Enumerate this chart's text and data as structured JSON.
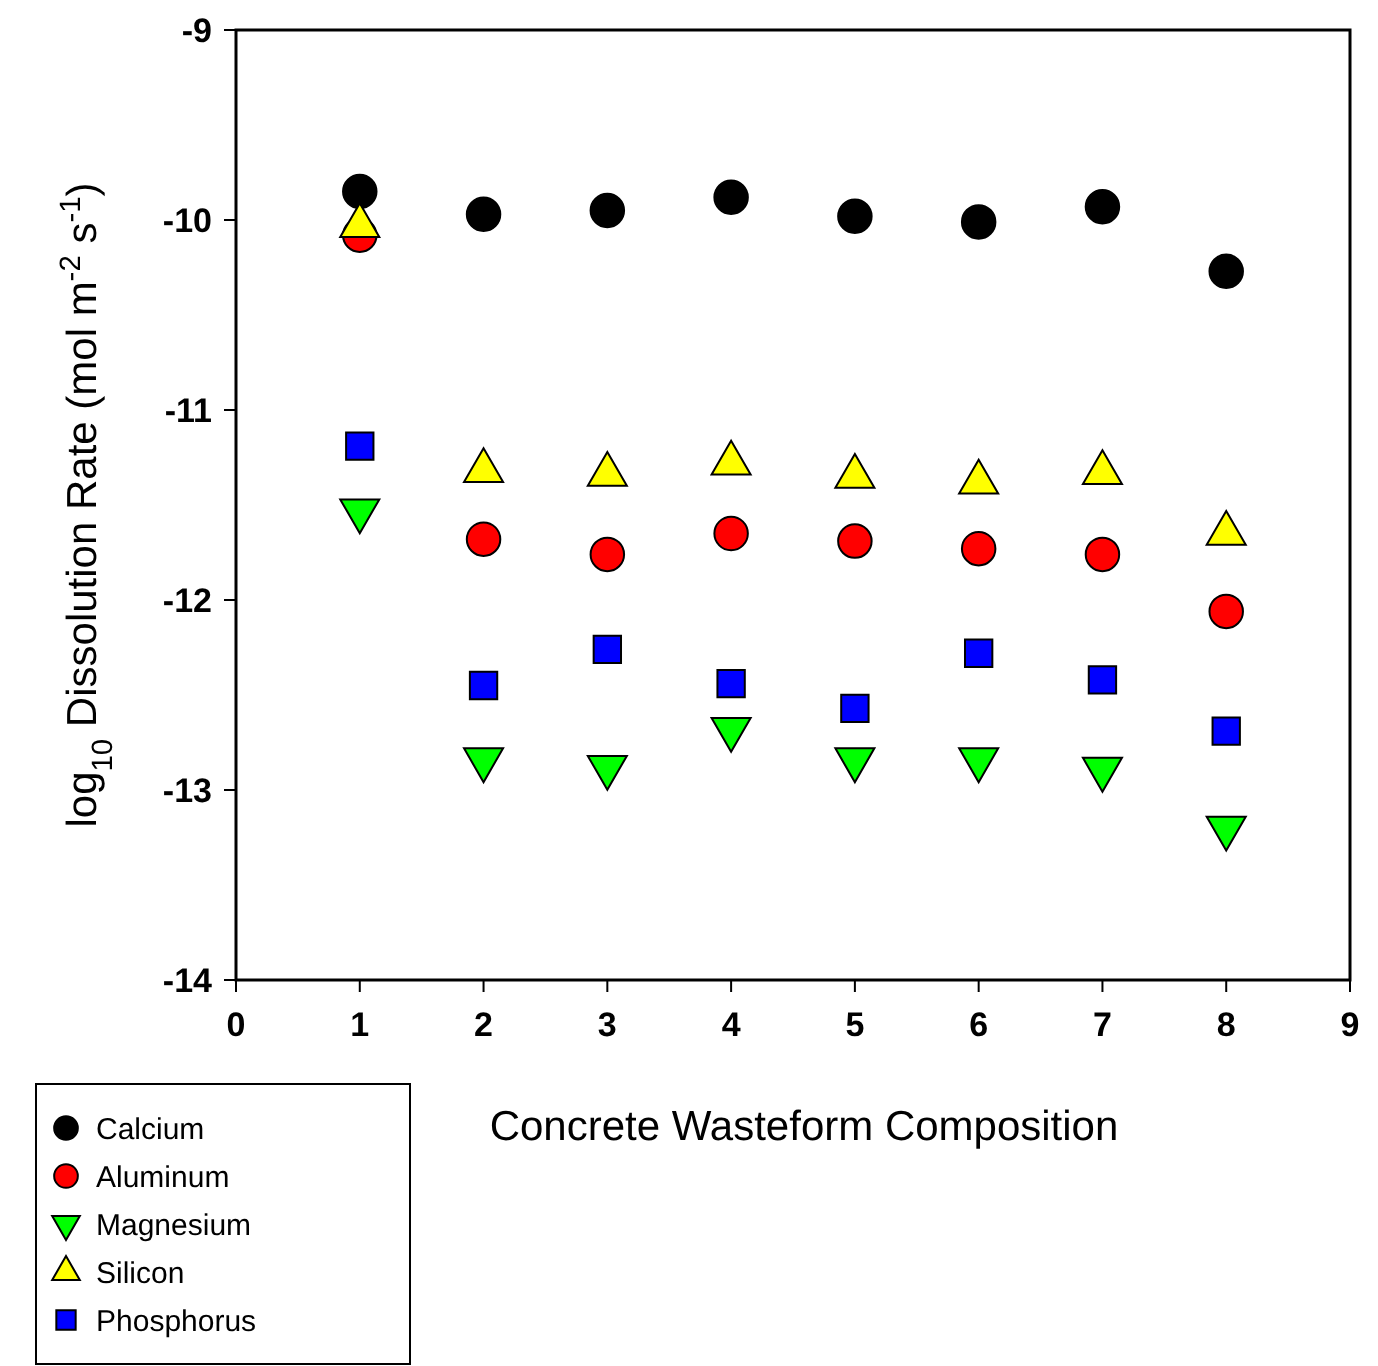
{
  "chart_data": {
    "type": "scatter",
    "xlabel": "Concrete Wasteform Composition",
    "ylabel": "log$_{10}$ Dissolution Rate (mol m$^{-2}$ s$^{-1}$)",
    "x": [
      1,
      2,
      3,
      4,
      5,
      6,
      7,
      8
    ],
    "xlim": [
      0,
      9
    ],
    "xticks": [
      0,
      1,
      2,
      3,
      4,
      5,
      6,
      7,
      8,
      9
    ],
    "ylim": [
      -14,
      -9
    ],
    "yticks": [
      -14,
      -13,
      -12,
      -11,
      -10,
      -9
    ],
    "grid": false,
    "legend": "bottom left",
    "series": [
      {
        "name": "Calcium",
        "color": "#000000",
        "marker": "circle",
        "values": [
          -9.85,
          -9.97,
          -9.95,
          -9.88,
          -9.98,
          -10.01,
          -9.93,
          -10.27
        ]
      },
      {
        "name": "Aluminum",
        "color": "#ff0000",
        "marker": "circle",
        "values": [
          -10.08,
          -11.68,
          -11.76,
          -11.65,
          -11.69,
          -11.73,
          -11.76,
          -12.06
        ]
      },
      {
        "name": "Magnesium",
        "color": "#00ff00",
        "marker": "triangle-down",
        "values": [
          -11.53,
          -12.84,
          -12.88,
          -12.68,
          -12.84,
          -12.84,
          -12.89,
          -13.2
        ]
      },
      {
        "name": "Silicon",
        "color": "#ffff00",
        "marker": "triangle",
        "values": [
          -10.03,
          -11.32,
          -11.34,
          -11.28,
          -11.35,
          -11.38,
          -11.33,
          -11.65
        ]
      },
      {
        "name": "Phosphorus",
        "color": "#0000ff",
        "marker": "square",
        "values": [
          -11.19,
          -12.45,
          -12.26,
          -12.44,
          -12.57,
          -12.28,
          -12.42,
          -12.69
        ]
      }
    ]
  }
}
